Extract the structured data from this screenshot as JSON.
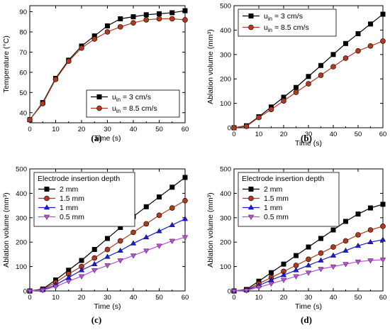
{
  "chart_data": [
    {
      "panel": "(a)",
      "type": "line",
      "xlabel": "Time (s)",
      "ylabel": "Temperature (°C)",
      "xlim": [
        0,
        60
      ],
      "ylim": [
        35,
        93
      ],
      "xticks": [
        0,
        10,
        20,
        30,
        40,
        50,
        60
      ],
      "yticks": [
        40,
        50,
        60,
        70,
        80,
        90
      ],
      "legend": {
        "position": "bottom-right",
        "title": ""
      },
      "x": [
        0,
        5,
        10,
        15,
        20,
        25,
        30,
        35,
        40,
        45,
        50,
        55,
        60
      ],
      "series": [
        {
          "label": "u",
          "sub": "in",
          "suffix": " = 3 cm/s",
          "color": "#000000",
          "marker": "square",
          "values": [
            36.5,
            45,
            57,
            66,
            73,
            78,
            83,
            86.5,
            87.5,
            88.5,
            89,
            89.5,
            90.5
          ]
        },
        {
          "label": "u",
          "sub": "in",
          "suffix": " = 8.5 cm/s",
          "color": "#b03a1e",
          "marker": "circle",
          "values": [
            36.5,
            44.5,
            56.5,
            65.5,
            72,
            76.5,
            80,
            82.5,
            84.5,
            86,
            86.5,
            86.5,
            86
          ]
        }
      ]
    },
    {
      "panel": "(b)",
      "type": "line",
      "xlabel": "Time (s)",
      "ylabel": "Ablation volume (mm³)",
      "xlim": [
        0,
        60
      ],
      "ylim": [
        0,
        500
      ],
      "xticks": [
        0,
        10,
        20,
        30,
        40,
        50,
        60
      ],
      "yticks": [
        0,
        100,
        200,
        300,
        400,
        500
      ],
      "legend": {
        "position": "top-left",
        "title": ""
      },
      "x": [
        0,
        5,
        10,
        15,
        20,
        25,
        30,
        35,
        40,
        45,
        50,
        55,
        60
      ],
      "series": [
        {
          "label": "u",
          "sub": "in",
          "suffix": " = 3 cm/s",
          "color": "#000000",
          "marker": "square",
          "values": [
            0,
            8,
            45,
            85,
            125,
            165,
            210,
            255,
            300,
            345,
            385,
            425,
            465
          ]
        },
        {
          "label": "u",
          "sub": "in",
          "suffix": " = 8.5 cm/s",
          "color": "#b03a1e",
          "marker": "circle",
          "values": [
            0,
            6,
            42,
            75,
            110,
            145,
            180,
            215,
            250,
            285,
            315,
            335,
            355
          ]
        }
      ]
    },
    {
      "panel": "(c)",
      "type": "line",
      "xlabel": "Time (s)",
      "ylabel": "Ablation volume (mm³)",
      "xlim": [
        0,
        60
      ],
      "ylim": [
        0,
        500
      ],
      "xticks": [
        0,
        10,
        20,
        30,
        40,
        50,
        60
      ],
      "yticks": [
        0,
        100,
        200,
        300,
        400,
        500
      ],
      "legend": {
        "position": "top-left",
        "title": "Electrode insertion depth"
      },
      "x": [
        0,
        5,
        10,
        15,
        20,
        25,
        30,
        35,
        40,
        45,
        50,
        55,
        60
      ],
      "series": [
        {
          "label": "2 mm",
          "sub": "",
          "suffix": "",
          "color": "#000000",
          "marker": "square",
          "values": [
            0,
            8,
            45,
            85,
            125,
            170,
            215,
            260,
            305,
            345,
            385,
            425,
            465
          ]
        },
        {
          "label": "1.5 mm",
          "sub": "",
          "suffix": "",
          "color": "#b03a1e",
          "marker": "circle",
          "values": [
            0,
            6,
            35,
            70,
            100,
            135,
            170,
            205,
            240,
            275,
            310,
            340,
            370
          ]
        },
        {
          "label": "1 mm",
          "sub": "",
          "suffix": "",
          "color": "#1b1bd6",
          "marker": "triangle-up",
          "values": [
            0,
            4,
            25,
            55,
            85,
            110,
            140,
            165,
            195,
            220,
            245,
            270,
            295
          ]
        },
        {
          "label": "0.5 mm",
          "sub": "",
          "suffix": "",
          "color": "#b84fd6",
          "marker": "triangle-down",
          "values": [
            0,
            3,
            18,
            40,
            60,
            85,
            105,
            125,
            145,
            165,
            185,
            205,
            220
          ]
        }
      ]
    },
    {
      "panel": "(d)",
      "type": "line",
      "xlabel": "Time (s)",
      "ylabel": "Ablation volume (mm³)",
      "xlim": [
        0,
        60
      ],
      "ylim": [
        0,
        500
      ],
      "xticks": [
        0,
        10,
        20,
        30,
        40,
        50,
        60
      ],
      "yticks": [
        0,
        100,
        200,
        300,
        400,
        500
      ],
      "legend": {
        "position": "top-left",
        "title": "Electrode insertion depth"
      },
      "x": [
        0,
        5,
        10,
        15,
        20,
        25,
        30,
        35,
        40,
        45,
        50,
        55,
        60
      ],
      "series": [
        {
          "label": "2 mm",
          "sub": "",
          "suffix": "",
          "color": "#000000",
          "marker": "square",
          "values": [
            0,
            6,
            40,
            75,
            110,
            145,
            180,
            215,
            250,
            285,
            315,
            340,
            355
          ]
        },
        {
          "label": "1.5 mm",
          "sub": "",
          "suffix": "",
          "color": "#b03a1e",
          "marker": "circle",
          "values": [
            0,
            4,
            30,
            55,
            80,
            105,
            130,
            155,
            180,
            205,
            230,
            250,
            265
          ]
        },
        {
          "label": "1 mm",
          "sub": "",
          "suffix": "",
          "color": "#1b1bd6",
          "marker": "triangle-up",
          "values": [
            0,
            3,
            22,
            45,
            65,
            85,
            105,
            125,
            145,
            165,
            185,
            200,
            210
          ]
        },
        {
          "label": "0.5 mm",
          "sub": "",
          "suffix": "",
          "color": "#b84fd6",
          "marker": "triangle-down",
          "values": [
            0,
            2,
            15,
            30,
            45,
            60,
            75,
            90,
            100,
            110,
            120,
            125,
            128
          ]
        }
      ]
    }
  ]
}
